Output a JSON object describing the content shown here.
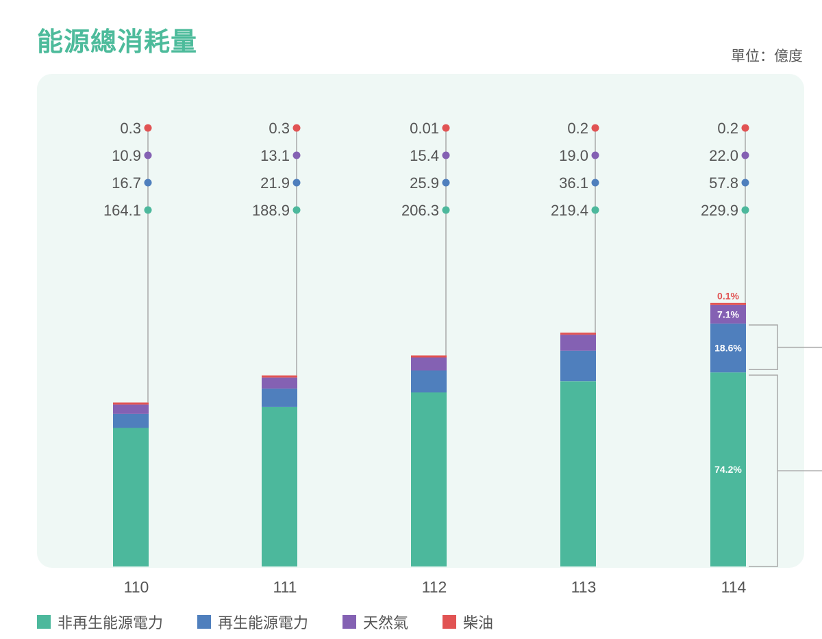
{
  "page": {
    "title": "能源總消耗量",
    "unit": "單位：億度"
  },
  "chart_data": {
    "type": "bar",
    "stacked": true,
    "title": "能源總消耗量",
    "unit": "單位：億度",
    "categories": [
      "110",
      "111",
      "112",
      "113",
      "114"
    ],
    "series": [
      {
        "name": "非再生能源電力",
        "color": "#4cb89c",
        "labels": [
          "164.1",
          "188.9",
          "206.3",
          "219.4",
          "229.9"
        ],
        "values": [
          164.1,
          188.9,
          206.3,
          219.4,
          229.9
        ]
      },
      {
        "name": "再生能源電力",
        "color": "#4f7fbd",
        "labels": [
          "16.7",
          "21.9",
          "25.9",
          "36.1",
          "57.8"
        ],
        "values": [
          16.7,
          21.9,
          25.9,
          36.1,
          57.8
        ]
      },
      {
        "name": "天然氣",
        "color": "#8461b3",
        "labels": [
          "10.9",
          "13.1",
          "15.4",
          "19.0",
          "22.0"
        ],
        "values": [
          10.9,
          13.1,
          15.4,
          19.0,
          22.0
        ]
      },
      {
        "name": "柴油",
        "color": "#e15353",
        "labels": [
          "0.3",
          "0.3",
          "0.01",
          "0.2",
          "0.2"
        ],
        "values": [
          0.3,
          0.3,
          0.01,
          0.2,
          0.2
        ]
      }
    ],
    "percent_labels": {
      "category": "114",
      "values": [
        "74.2%",
        "18.6%",
        "7.1%",
        "0.1%"
      ]
    },
    "legend_position": "bottom-left",
    "grid": false
  }
}
